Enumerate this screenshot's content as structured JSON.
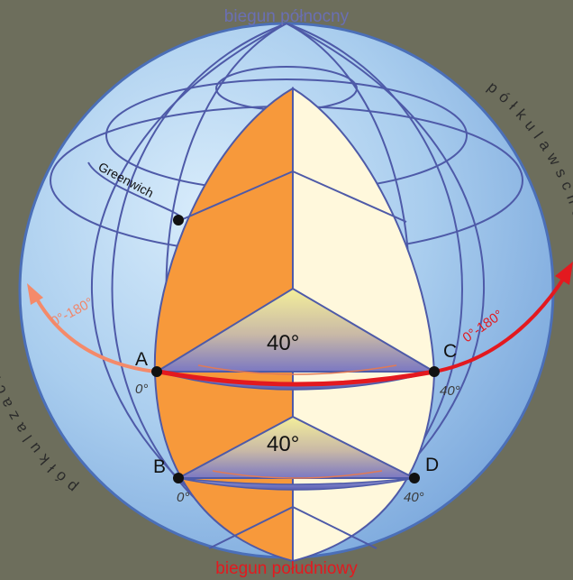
{
  "labels": {
    "north_pole": "biegun północny",
    "south_pole": "biegun południowy",
    "greenwich": "Greenwich",
    "west_hemisphere": "p ó ł k u l a   z a c h o d n i a",
    "east_hemisphere": "p ó ł k u l a   w s c h o d n i a",
    "west_longitude_range": "0°-180°",
    "east_longitude_range": "0°-180°",
    "angle_equator": "40°",
    "angle_parallel": "40°",
    "point_a": "A",
    "point_b": "B",
    "point_c": "C",
    "point_d": "D",
    "lon_a": "0°",
    "lon_b": "0°",
    "lon_c": "40°",
    "lon_d": "40°"
  },
  "colors": {
    "background": "#6d6e5c",
    "globe_fill": "#9cc3e6",
    "globe_edge": "#4b6fb8",
    "meridian_line": "#4e5aa8",
    "greenwich_slice": "#f7993b",
    "angle_slice": "#fff8dc",
    "equator_arrow": "#e3191f",
    "west_arrow": "#f48a6a",
    "north_label": "#6a6fb3",
    "south_label": "#e3191f"
  }
}
